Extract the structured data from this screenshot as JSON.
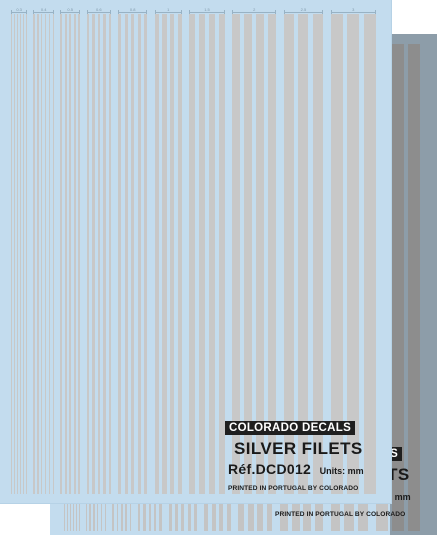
{
  "sheet": {
    "brand": "COLORADO DECALS",
    "title": "SILVER FILETS",
    "reference": "Réf.DCD012",
    "units": "Units: mm",
    "printed": "PRINTED IN PORTUGAL BY COLORADO"
  },
  "ruler_labels": [
    "0.3",
    "0.4",
    "0.5",
    "0.6",
    "0.8",
    "1",
    "1.5",
    "2",
    "2.5",
    "3"
  ],
  "colors": {
    "decal_paper": "#c3dcee",
    "silver_stripe": "#c8c8c8",
    "label_bar": "#1f1f1f"
  }
}
